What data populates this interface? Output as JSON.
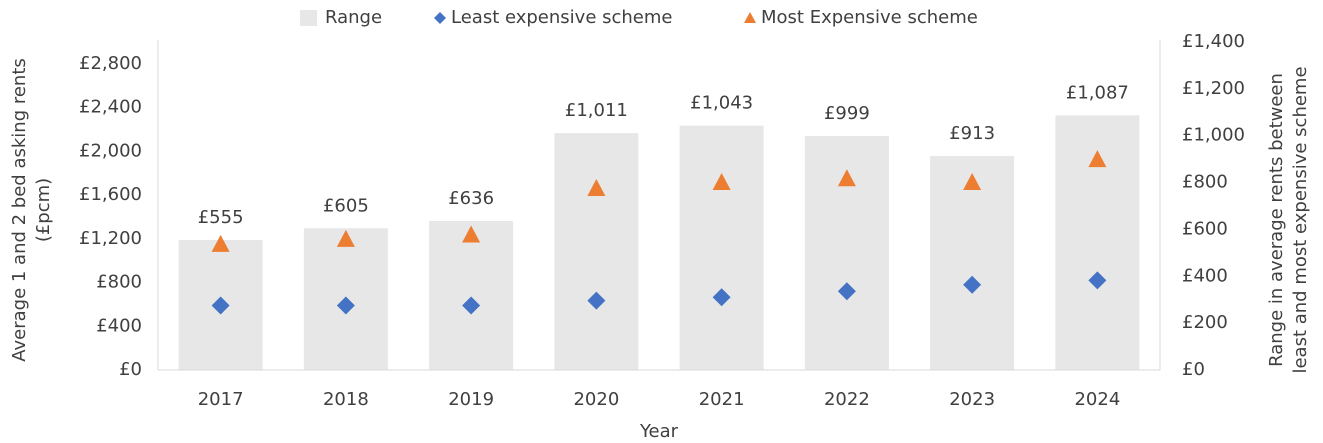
{
  "chart_data": {
    "type": "bar",
    "x_label": "Year",
    "y_label": [
      "Average 1 and 2 bed asking rents",
      "(£pcm)"
    ],
    "y2_label": [
      "Range in average rents between",
      "least and most expensive scheme"
    ],
    "categories": [
      "2017",
      "2018",
      "2019",
      "2020",
      "2021",
      "2022",
      "2023",
      "2024"
    ],
    "series": [
      {
        "name": "Range",
        "type": "bar",
        "axis": "y2",
        "color": "#e7e7e7",
        "values": [
          555,
          605,
          636,
          1011,
          1043,
          999,
          913,
          1087
        ],
        "value_labels": [
          "£555",
          "£605",
          "£636",
          "£1,011",
          "£1,043",
          "£999",
          "£913",
          "£1,087"
        ]
      },
      {
        "name": "Least expensive scheme",
        "type": "scatter",
        "marker": "diamond",
        "color": "#4472c4",
        "values": [
          590,
          590,
          590,
          635,
          665,
          720,
          780,
          820
        ]
      },
      {
        "name": "Most Expensive scheme",
        "type": "scatter",
        "marker": "triangle",
        "color": "#ed7d31",
        "values": [
          1145,
          1190,
          1230,
          1655,
          1710,
          1745,
          1710,
          1920
        ]
      }
    ],
    "ylim": [
      0,
      3000
    ],
    "yticks": [
      {
        "value": 0,
        "label": "£0"
      },
      {
        "value": 400,
        "label": "£400"
      },
      {
        "value": 800,
        "label": "£800"
      },
      {
        "value": 1200,
        "label": "£1,200"
      },
      {
        "value": 1600,
        "label": "£1,600"
      },
      {
        "value": 2000,
        "label": "£2,000"
      },
      {
        "value": 2400,
        "label": "£2,400"
      },
      {
        "value": 2800,
        "label": "£2,800"
      }
    ],
    "y2lim": [
      0,
      1400
    ],
    "y2ticks": [
      {
        "value": 0,
        "label": "£0"
      },
      {
        "value": 200,
        "label": "£200"
      },
      {
        "value": 400,
        "label": "£400"
      },
      {
        "value": 600,
        "label": "£600"
      },
      {
        "value": 800,
        "label": "£800"
      },
      {
        "value": 1000,
        "label": "£1,000"
      },
      {
        "value": 1200,
        "label": "£1,200"
      },
      {
        "value": 1400,
        "label": "£1,400"
      }
    ],
    "legend": "top"
  }
}
